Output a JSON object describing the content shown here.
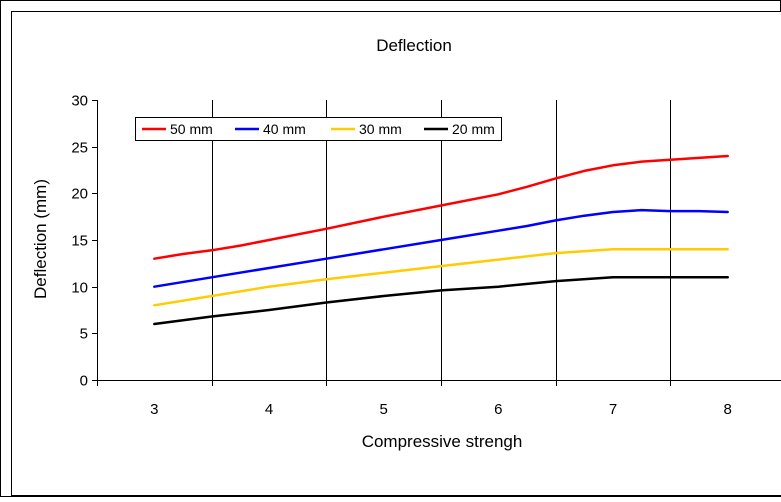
{
  "chart_data": {
    "type": "line",
    "title": "Deflection",
    "xlabel": "Compressive strengh",
    "ylabel": "Deflection (mm)",
    "xlim": [
      2.5,
      8.5
    ],
    "ylim": [
      0,
      30
    ],
    "x_ticks": [
      "3",
      "4",
      "5",
      "6",
      "7",
      "8"
    ],
    "y_ticks": [
      "0",
      "5",
      "10",
      "15",
      "20",
      "25",
      "30"
    ],
    "grid": {
      "vertical": true,
      "horizontal": false
    },
    "legend_position": "top-left",
    "series": [
      {
        "name": "50 mm",
        "color": "#ff0000",
        "points": [
          [
            3,
            13
          ],
          [
            3.25,
            13.5
          ],
          [
            3.5,
            13.9
          ],
          [
            3.75,
            14.4
          ],
          [
            4,
            15
          ],
          [
            4.5,
            16.2
          ],
          [
            5,
            17.5
          ],
          [
            5.5,
            18.7
          ],
          [
            6,
            19.9
          ],
          [
            6.25,
            20.7
          ],
          [
            6.5,
            21.6
          ],
          [
            6.75,
            22.4
          ],
          [
            7,
            23
          ],
          [
            7.25,
            23.4
          ],
          [
            7.5,
            23.6
          ],
          [
            7.75,
            23.8
          ],
          [
            8,
            24
          ]
        ]
      },
      {
        "name": "40 mm",
        "color": "#0000ff",
        "points": [
          [
            3,
            10
          ],
          [
            3.5,
            11
          ],
          [
            4,
            12
          ],
          [
            4.5,
            13
          ],
          [
            5,
            14
          ],
          [
            5.5,
            15
          ],
          [
            6,
            16
          ],
          [
            6.25,
            16.5
          ],
          [
            6.5,
            17.1
          ],
          [
            6.75,
            17.6
          ],
          [
            7,
            18
          ],
          [
            7.25,
            18.2
          ],
          [
            7.5,
            18.1
          ],
          [
            7.75,
            18.1
          ],
          [
            8,
            18
          ]
        ]
      },
      {
        "name": "30 mm",
        "color": "#ffcc00",
        "points": [
          [
            3,
            8
          ],
          [
            3.5,
            9
          ],
          [
            4,
            10
          ],
          [
            4.5,
            10.8
          ],
          [
            5,
            11.5
          ],
          [
            5.5,
            12.2
          ],
          [
            6,
            12.9
          ],
          [
            6.5,
            13.6
          ],
          [
            7,
            14
          ],
          [
            7.5,
            14
          ],
          [
            8,
            14
          ]
        ]
      },
      {
        "name": "20 mm",
        "color": "#000000",
        "points": [
          [
            3,
            6
          ],
          [
            3.5,
            6.8
          ],
          [
            4,
            7.5
          ],
          [
            4.5,
            8.3
          ],
          [
            5,
            9
          ],
          [
            5.5,
            9.6
          ],
          [
            6,
            10
          ],
          [
            6.5,
            10.6
          ],
          [
            7,
            11
          ],
          [
            7.5,
            11
          ],
          [
            8,
            11
          ]
        ]
      }
    ]
  }
}
